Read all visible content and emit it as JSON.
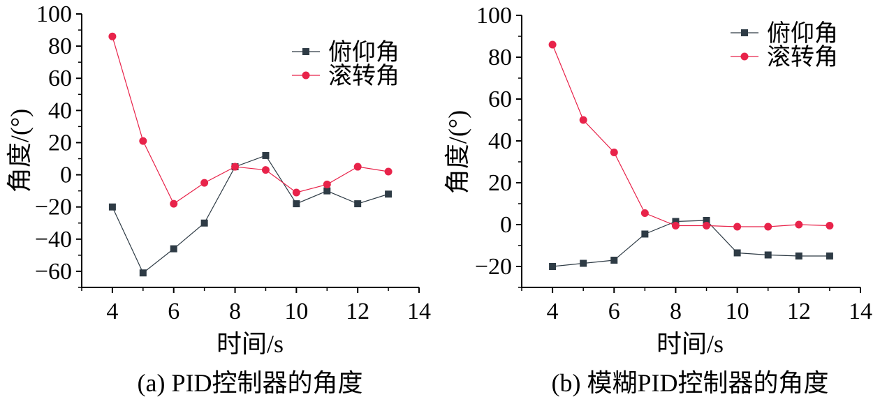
{
  "colors": {
    "pitch": "#2e3b45",
    "roll": "#e8234a",
    "axis": "#000000"
  },
  "chart_data": [
    {
      "type": "line",
      "caption": "(a) PID控制器的角度",
      "xlabel": "时间/s",
      "ylabel": "角度/(°)",
      "xlim": [
        3,
        14
      ],
      "ylim": [
        -70,
        100
      ],
      "xticks": [
        4,
        6,
        8,
        10,
        12,
        14
      ],
      "yticks": [
        -60,
        -40,
        -20,
        0,
        20,
        40,
        60,
        80,
        100
      ],
      "ytick_labels": [
        "−60",
        "−40",
        "−20",
        "0",
        "20",
        "40",
        "60",
        "80",
        "100"
      ],
      "x": [
        4,
        5,
        6,
        7,
        8,
        9,
        10,
        11,
        12,
        13
      ],
      "legend_position": "top-right",
      "series": [
        {
          "name": "俯仰角",
          "marker": "square",
          "values": [
            -20,
            -61,
            -46,
            -30,
            5,
            12,
            -18,
            -10,
            -18,
            -12
          ]
        },
        {
          "name": "滚转角",
          "marker": "circle",
          "values": [
            86,
            21,
            -18,
            -5,
            5,
            3,
            -11,
            -6,
            5,
            2
          ]
        }
      ]
    },
    {
      "type": "line",
      "caption": "(b) 模糊PID控制器的角度",
      "xlabel": "时间/s",
      "ylabel": "角度/(°)",
      "xlim": [
        3,
        14
      ],
      "ylim": [
        -30,
        100
      ],
      "xticks": [
        4,
        6,
        8,
        10,
        12,
        14
      ],
      "yticks": [
        -20,
        0,
        20,
        40,
        60,
        80,
        100
      ],
      "ytick_labels": [
        "−20",
        "0",
        "20",
        "40",
        "60",
        "80",
        "100"
      ],
      "x": [
        4,
        5,
        6,
        7,
        8,
        9,
        10,
        11,
        12,
        13
      ],
      "legend_position": "top-right",
      "series": [
        {
          "name": "俯仰角",
          "marker": "square",
          "values": [
            -20,
            -18.5,
            -17,
            -4.5,
            1.5,
            2,
            -13.5,
            -14.5,
            -15,
            -15
          ]
        },
        {
          "name": "滚转角",
          "marker": "circle",
          "values": [
            86,
            50,
            34.5,
            5.5,
            -0.5,
            -0.5,
            -1,
            -1,
            0,
            -0.5
          ]
        }
      ]
    }
  ]
}
